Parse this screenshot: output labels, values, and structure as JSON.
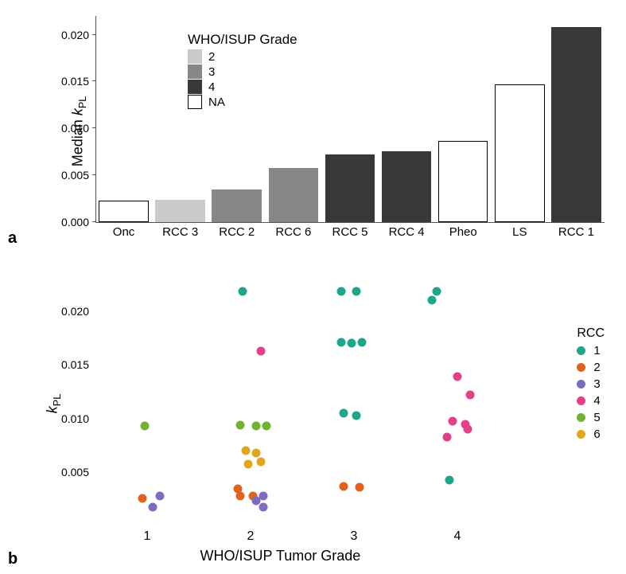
{
  "panel_a": {
    "label": "a",
    "type": "bar",
    "ylabel_html": "Median <span class='italic'>k</span><span class='sub'>PL</span>",
    "ylim": [
      0,
      0.022
    ],
    "yticks": [
      0.0,
      0.005,
      0.01,
      0.015,
      0.02
    ],
    "ytick_labels": [
      "0.000",
      "0.005",
      "0.010",
      "0.015",
      "0.020"
    ],
    "categories": [
      "Onc",
      "RCC 3",
      "RCC 2",
      "RCC 6",
      "RCC 5",
      "RCC 4",
      "Pheo",
      "LS",
      "RCC 1"
    ],
    "values": [
      0.0023,
      0.0024,
      0.0035,
      0.0058,
      0.0072,
      0.0076,
      0.0087,
      0.0147,
      0.0208
    ],
    "bar_fill": [
      "#ffffff",
      "#cacaca",
      "#878787",
      "#878787",
      "#383838",
      "#383838",
      "#ffffff",
      "#ffffff",
      "#383838"
    ],
    "bar_stroke": [
      "#000000",
      "#cacaca",
      "#878787",
      "#878787",
      "#383838",
      "#383838",
      "#000000",
      "#000000",
      "#383838"
    ],
    "bar_width": 0.88,
    "legend": {
      "title": "WHO/ISUP Grade",
      "items": [
        {
          "label": "2",
          "fill": "#cacaca",
          "stroke": "#cacaca"
        },
        {
          "label": "3",
          "fill": "#878787",
          "stroke": "#878787"
        },
        {
          "label": "4",
          "fill": "#383838",
          "stroke": "#383838"
        },
        {
          "label": "NA",
          "fill": "#ffffff",
          "stroke": "#000000"
        }
      ]
    }
  },
  "panel_b": {
    "label": "b",
    "type": "scatter",
    "xlabel": "WHO/ISUP Tumor Grade",
    "ylabel_html": "<span class='italic'>k</span><span class='sub'>PL</span>",
    "xlim": [
      0.5,
      4.5
    ],
    "xticks": [
      1,
      2,
      3,
      4
    ],
    "ylim": [
      0,
      0.023
    ],
    "yticks": [
      0.005,
      0.01,
      0.015,
      0.02
    ],
    "ytick_labels": [
      "0.005",
      "0.010",
      "0.015",
      "0.020"
    ],
    "legend": {
      "title": "RCC",
      "items": [
        {
          "label": "1",
          "color": "#1ea68a"
        },
        {
          "label": "2",
          "color": "#e1621f"
        },
        {
          "label": "3",
          "color": "#7f6bbf"
        },
        {
          "label": "4",
          "color": "#e43f8a"
        },
        {
          "label": "5",
          "color": "#6fb32e"
        },
        {
          "label": "6",
          "color": "#e0a71e"
        }
      ]
    },
    "points": [
      {
        "x": 0.95,
        "y": 0.0026,
        "series": 2
      },
      {
        "x": 1.05,
        "y": 0.0018,
        "series": 3
      },
      {
        "x": 1.12,
        "y": 0.0028,
        "series": 3
      },
      {
        "x": 0.98,
        "y": 0.0093,
        "series": 5
      },
      {
        "x": 1.92,
        "y": 0.0218,
        "series": 1
      },
      {
        "x": 2.1,
        "y": 0.0163,
        "series": 4
      },
      {
        "x": 1.9,
        "y": 0.0094,
        "series": 5
      },
      {
        "x": 2.05,
        "y": 0.0093,
        "series": 5
      },
      {
        "x": 2.15,
        "y": 0.0093,
        "series": 5
      },
      {
        "x": 1.95,
        "y": 0.007,
        "series": 6
      },
      {
        "x": 2.05,
        "y": 0.0068,
        "series": 6
      },
      {
        "x": 1.98,
        "y": 0.0058,
        "series": 6
      },
      {
        "x": 2.1,
        "y": 0.006,
        "series": 6
      },
      {
        "x": 1.88,
        "y": 0.0035,
        "series": 2
      },
      {
        "x": 1.9,
        "y": 0.0028,
        "series": 2
      },
      {
        "x": 2.02,
        "y": 0.0028,
        "series": 2
      },
      {
        "x": 2.05,
        "y": 0.0024,
        "series": 3
      },
      {
        "x": 2.12,
        "y": 0.0018,
        "series": 3
      },
      {
        "x": 2.12,
        "y": 0.0028,
        "series": 3
      },
      {
        "x": 2.88,
        "y": 0.0218,
        "series": 1
      },
      {
        "x": 3.02,
        "y": 0.0218,
        "series": 1
      },
      {
        "x": 2.88,
        "y": 0.0171,
        "series": 1
      },
      {
        "x": 2.98,
        "y": 0.017,
        "series": 1
      },
      {
        "x": 3.08,
        "y": 0.0171,
        "series": 1
      },
      {
        "x": 2.9,
        "y": 0.0105,
        "series": 1
      },
      {
        "x": 3.02,
        "y": 0.0103,
        "series": 1
      },
      {
        "x": 2.9,
        "y": 0.0037,
        "series": 2
      },
      {
        "x": 3.05,
        "y": 0.0036,
        "series": 2
      },
      {
        "x": 3.8,
        "y": 0.0218,
        "series": 1
      },
      {
        "x": 3.75,
        "y": 0.021,
        "series": 1
      },
      {
        "x": 4.0,
        "y": 0.0139,
        "series": 4
      },
      {
        "x": 4.12,
        "y": 0.0122,
        "series": 4
      },
      {
        "x": 3.95,
        "y": 0.0098,
        "series": 4
      },
      {
        "x": 4.08,
        "y": 0.0095,
        "series": 4
      },
      {
        "x": 4.1,
        "y": 0.009,
        "series": 4
      },
      {
        "x": 3.9,
        "y": 0.0083,
        "series": 4
      },
      {
        "x": 3.92,
        "y": 0.0043,
        "series": 1
      }
    ]
  }
}
